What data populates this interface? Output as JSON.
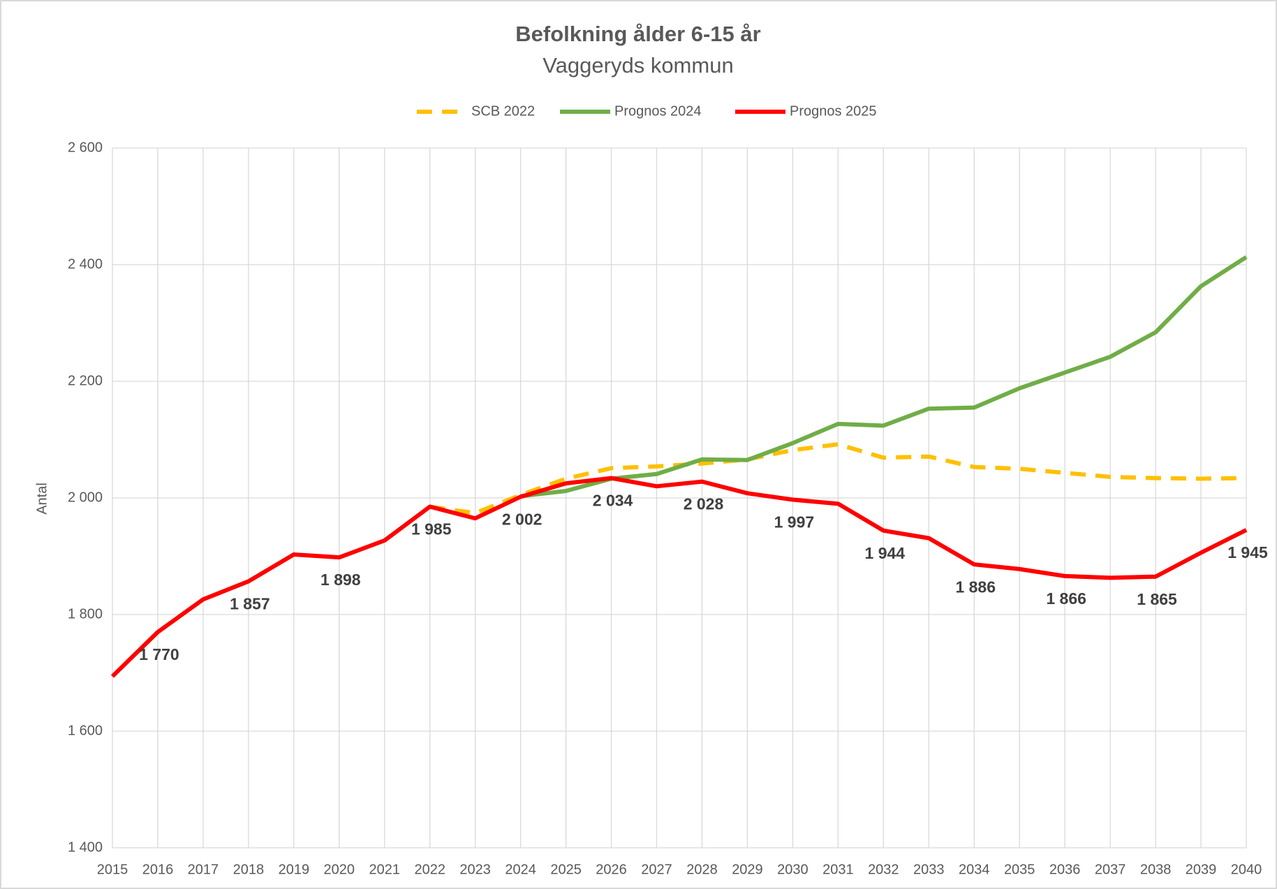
{
  "chart_data": {
    "type": "line",
    "title": "Befolkning ålder 6-15 år",
    "subtitle": "Vaggeryds kommun",
    "y_label": "Antal",
    "categories": [
      "2015",
      "2016",
      "2017",
      "2018",
      "2019",
      "2020",
      "2021",
      "2022",
      "2023",
      "2024",
      "2025",
      "2026",
      "2027",
      "2028",
      "2029",
      "2030",
      "2031",
      "2032",
      "2033",
      "2034",
      "2035",
      "2036",
      "2037",
      "2038",
      "2039",
      "2040"
    ],
    "ylim": [
      1400,
      2600
    ],
    "yticks": [
      {
        "value": 1400,
        "label": "1 400"
      },
      {
        "value": 1600,
        "label": "1 600"
      },
      {
        "value": 1800,
        "label": "1 800"
      },
      {
        "value": 2000,
        "label": "2 000"
      },
      {
        "value": 2200,
        "label": "2 200"
      },
      {
        "value": 2400,
        "label": "2 400"
      },
      {
        "value": 2600,
        "label": "2 600"
      }
    ],
    "grid": true,
    "legend": "top",
    "series": [
      {
        "name": "SCB 2022",
        "color": "#FFC000",
        "dashed": true,
        "values": [
          null,
          null,
          null,
          null,
          null,
          null,
          null,
          1985,
          1974,
          2005,
          2033,
          2051,
          2054,
          2059,
          2066,
          2082,
          2092,
          2069,
          2071,
          2053,
          2050,
          2043,
          2036,
          2034,
          2033,
          2034
        ]
      },
      {
        "name": "Prognos 2024",
        "color": "#70AD47",
        "dashed": false,
        "values": [
          null,
          null,
          null,
          null,
          null,
          null,
          null,
          null,
          null,
          2003,
          2012,
          2033,
          2041,
          2066,
          2065,
          2094,
          2127,
          2124,
          2153,
          2155,
          2188,
          2215,
          2242,
          2284,
          2363,
          2413
        ]
      },
      {
        "name": "Prognos 2025",
        "color": "#FF0000",
        "dashed": false,
        "values": [
          1694,
          1770,
          1826,
          1857,
          1903,
          1898,
          1927,
          1985,
          1965,
          2002,
          2025,
          2034,
          2020,
          2028,
          2008,
          1997,
          1990,
          1944,
          1931,
          1886,
          1878,
          1866,
          1863,
          1865,
          1906,
          1945
        ],
        "value_labels": [
          null,
          "1 770",
          null,
          "1 857",
          null,
          "1 898",
          null,
          "1 985",
          null,
          "2 002",
          null,
          "2 034",
          null,
          "2 028",
          null,
          "1 997",
          null,
          "1 944",
          null,
          "1 886",
          null,
          "1 866",
          null,
          "1 865",
          null,
          "1 945"
        ]
      }
    ]
  }
}
